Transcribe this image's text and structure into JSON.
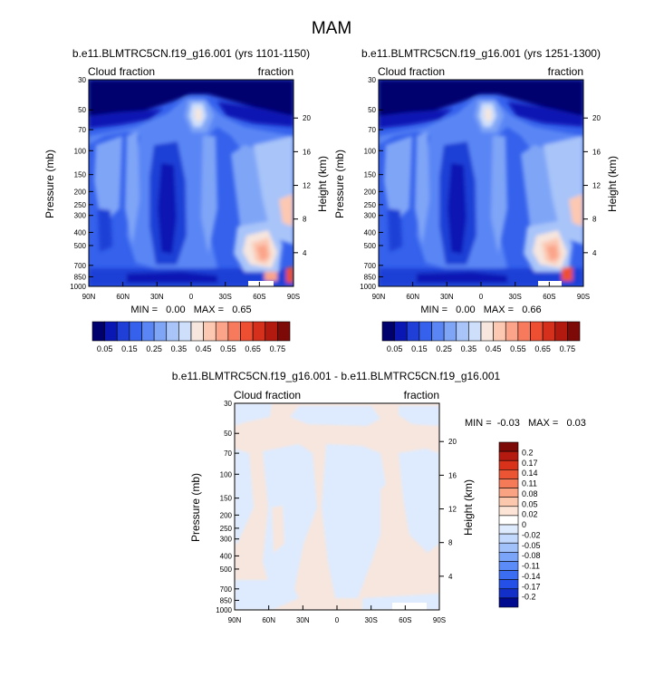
{
  "figure_title": "MAM",
  "colors": {
    "pos_scale": [
      "#00006e",
      "#0a17b3",
      "#1f3fd6",
      "#3561ec",
      "#5a86f5",
      "#7fa5f7",
      "#a8c4f9",
      "#cddffb",
      "#f6e6de",
      "#fcc8b2",
      "#fba48a",
      "#f87a5d",
      "#ee4f33",
      "#d4301b",
      "#b21a10",
      "#7e0a07"
    ],
    "diff_scale": [
      "#000a8f",
      "#1230c8",
      "#2550e8",
      "#3b6df2",
      "#5a8bf6",
      "#7ba5f8",
      "#a1c1fa",
      "#c2d8fc",
      "#deebfe",
      "#ffffff",
      "#fce5d6",
      "#fbc7ad",
      "#f9a383",
      "#f57b58",
      "#ec5533",
      "#d8331a",
      "#b51a10",
      "#7c0a07"
    ]
  },
  "panel_text": {
    "left_string": "Cloud fraction",
    "right_string": "fraction",
    "ylabel": "Pressure (mb)",
    "ylabel_right": "Height (km)"
  },
  "panels": [
    {
      "title": "b.e11.BLMTRC5CN.f19_g16.001 (yrs 1101-1150)",
      "stats": "MIN =   0.00   MAX =   0.65"
    },
    {
      "title": "b.e11.BLMTRC5CN.f19_g16.001 (yrs 1251-1300)",
      "stats": "MIN =   0.00   MAX =   0.66"
    },
    {
      "title": "b.e11.BLMTRC5CN.f19_g16.001 - b.e11.BLMTRC5CN.f19_g16.001",
      "stats": "MIN =  -0.03   MAX =   0.03"
    }
  ],
  "chart_data": [
    {
      "type": "heatmap",
      "title": "b.e11.BLMTRC5CN.f19_g16.001 (yrs 1101-1150)",
      "xlabel": "",
      "ylabel": "Pressure (mb)",
      "x_ticks": [
        "90N",
        "60N",
        "30N",
        "0",
        "30S",
        "60S",
        "90S"
      ],
      "x_range": [
        90,
        -90
      ],
      "y_ticks": [
        30,
        50,
        70,
        100,
        150,
        200,
        250,
        300,
        400,
        500,
        700,
        850,
        1000
      ],
      "y_range": [
        30,
        1000
      ],
      "y_scale": "log",
      "y2_label": "Height (km)",
      "y2_ticks": [
        4,
        8,
        12,
        16,
        20
      ],
      "colorbar_levels": [
        "0.05",
        "0.15",
        "0.25",
        "0.35",
        "0.45",
        "0.55",
        "0.65",
        "0.75"
      ],
      "min": 0.0,
      "max": 0.65
    },
    {
      "type": "heatmap",
      "title": "b.e11.BLMTRC5CN.f19_g16.001 (yrs 1251-1300)",
      "xlabel": "",
      "ylabel": "Pressure (mb)",
      "x_ticks": [
        "90N",
        "60N",
        "30N",
        "0",
        "30S",
        "60S",
        "90S"
      ],
      "x_range": [
        90,
        -90
      ],
      "y_ticks": [
        30,
        50,
        70,
        100,
        150,
        200,
        250,
        300,
        400,
        500,
        700,
        850,
        1000
      ],
      "y_range": [
        30,
        1000
      ],
      "y_scale": "log",
      "y2_label": "Height (km)",
      "y2_ticks": [
        4,
        8,
        12,
        16,
        20
      ],
      "colorbar_levels": [
        "0.05",
        "0.15",
        "0.25",
        "0.35",
        "0.45",
        "0.55",
        "0.65",
        "0.75"
      ],
      "min": 0.0,
      "max": 0.66
    },
    {
      "type": "heatmap",
      "title": "b.e11.BLMTRC5CN.f19_g16.001 - b.e11.BLMTRC5CN.f19_g16.001",
      "xlabel": "",
      "ylabel": "Pressure (mb)",
      "x_ticks": [
        "90N",
        "60N",
        "30N",
        "0",
        "30S",
        "60S",
        "90S"
      ],
      "x_range": [
        90,
        -90
      ],
      "y_ticks": [
        30,
        50,
        70,
        100,
        150,
        200,
        250,
        300,
        400,
        500,
        700,
        850,
        1000
      ],
      "y_range": [
        30,
        1000
      ],
      "y_scale": "log",
      "y2_label": "Height (km)",
      "y2_ticks": [
        4,
        8,
        12,
        16,
        20
      ],
      "colorbar_levels": [
        "0.2",
        "0.17",
        "0.14",
        "0.11",
        "0.08",
        "0.05",
        "0.02",
        "0",
        "-0.02",
        "-0.05",
        "-0.08",
        "-0.11",
        "-0.14",
        "-0.17",
        "-0.2"
      ],
      "min": -0.03,
      "max": 0.03
    }
  ]
}
